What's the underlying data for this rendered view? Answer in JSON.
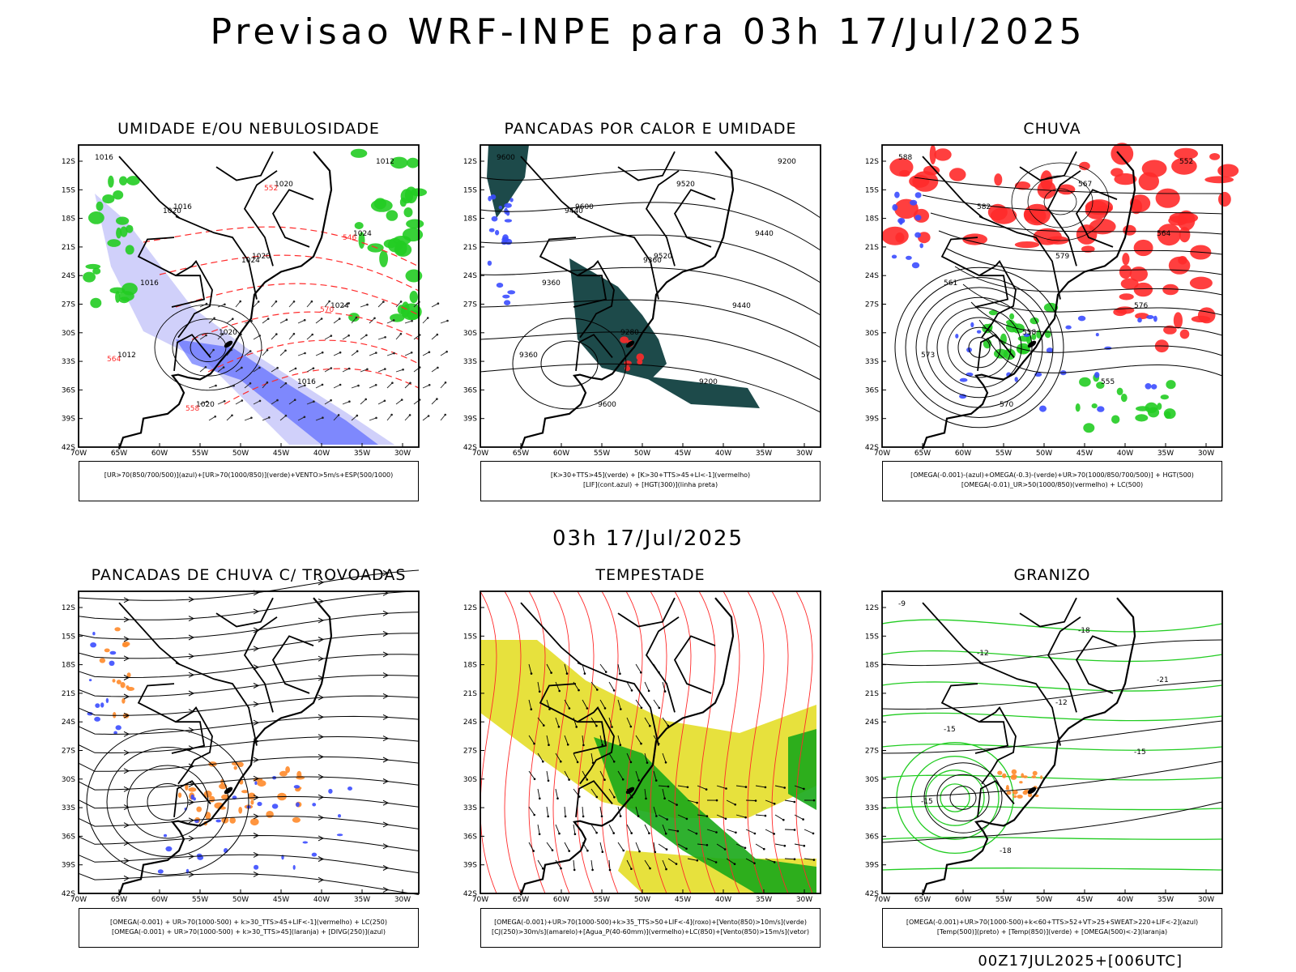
{
  "header": {
    "title": "Previsao WRF-INPE  para 03h 17/Jul/2025",
    "mid_title": "03h 17/Jul/2025",
    "footer": "00Z17JUL2025+[006UTC]"
  },
  "colors": {
    "frame": "#000000",
    "blue": "#3b4cff",
    "green": "#22cc22",
    "red": "#ff2a2a",
    "orange": "#ff8a2a",
    "yellow": "#e6df33",
    "dark_teal": "#1d4a4a",
    "lavender": "#a9a9f5"
  },
  "chart_data": [
    {
      "type": "map",
      "title": "UMIDADE E/OU NEBULOSIDADE",
      "legend": [
        "[UR>70(850/700/500)](azul)+[UR>70(1000/850)](verde)+VENTO>5m/s+ESP(500/1000)"
      ],
      "lon_ticks": [
        "70W",
        "65W",
        "60W",
        "55W",
        "50W",
        "45W",
        "40W",
        "35W",
        "30W"
      ],
      "lat_ticks": [
        "12S",
        "15S",
        "18S",
        "21S",
        "24S",
        "27S",
        "30S",
        "33S",
        "36S",
        "39S",
        "42S"
      ],
      "contour_labels": [
        "1016",
        "1016",
        "1020",
        "1024",
        "1012",
        "1020",
        "1020",
        "1024",
        "1016",
        "1020",
        "1016",
        "1012",
        "1020",
        "1024",
        "570",
        "564",
        "558",
        "552",
        "546"
      ]
    },
    {
      "type": "map",
      "title": "PANCADAS POR CALOR E UMIDADE",
      "legend": [
        "[K>30+TTS>45](verde) + [K>30+TTS>45+LI<-1](vermelho)",
        "[LIF](cont.azul) + [HGT(300)](linha preta)"
      ],
      "lon_ticks": [
        "70W",
        "65W",
        "60W",
        "55W",
        "50W",
        "45W",
        "40W",
        "35W",
        "30W"
      ],
      "lat_ticks": [
        "12S",
        "15S",
        "18S",
        "21S",
        "24S",
        "27S",
        "30S",
        "33S",
        "36S",
        "39S",
        "42S"
      ],
      "contour_labels": [
        "9600",
        "9600",
        "9520",
        "9440",
        "9360",
        "9600",
        "9520",
        "9440",
        "9360",
        "9280",
        "9200",
        "9200",
        "9440",
        "9360"
      ]
    },
    {
      "type": "map",
      "title": "CHUVA",
      "legend": [
        "[OMEGA(-0.001)-(azul)+OMEGA(-0.3)-(verde)+UR>70(1000/850/700/500)] + HGT(500)",
        "[OMEGA(-0.01)_UR>50(1000/850)(vermelho) + LC(500)"
      ],
      "lon_ticks": [
        "70W",
        "65W",
        "60W",
        "55W",
        "50W",
        "45W",
        "40W",
        "35W",
        "30W"
      ],
      "lat_ticks": [
        "12S",
        "15S",
        "18S",
        "21S",
        "24S",
        "27S",
        "30S",
        "33S",
        "36S",
        "39S",
        "42S"
      ],
      "contour_labels": [
        "588",
        "582",
        "579",
        "576",
        "573",
        "570",
        "567",
        "564",
        "561",
        "558",
        "555",
        "552"
      ]
    },
    {
      "type": "map",
      "title": "PANCADAS DE CHUVA C/ TROVOADAS",
      "legend": [
        "[OMEGA(-0.001) + UR>70(1000-500) + k>30_TTS>45+LIF<-1](vermelho) + LC(250)",
        "[OMEGA(-0.001) + UR>70(1000-500) + k>30_TTS>45](laranja) + [DIVG(250)](azul)"
      ],
      "lon_ticks": [
        "70W",
        "65W",
        "60W",
        "55W",
        "50W",
        "45W",
        "40W",
        "35W",
        "30W"
      ],
      "lat_ticks": [
        "12S",
        "15S",
        "18S",
        "21S",
        "24S",
        "27S",
        "30S",
        "33S",
        "36S",
        "39S",
        "42S"
      ],
      "contour_labels": []
    },
    {
      "type": "map",
      "title": "TEMPESTADE",
      "legend": [
        "[OMEGA(-0.001)+UR>70(1000-500)+k>35_TTS>50+LIF<-4](roxo)+[Vento(850)>10m/s](verde)",
        "[CJ(250)>30m/s](amarelo)+[Agua_P(40-60mm)](vermelho)+LC(850)+[Vento(850)>15m/s](vetor)"
      ],
      "lon_ticks": [
        "70W",
        "65W",
        "60W",
        "55W",
        "50W",
        "45W",
        "40W",
        "35W",
        "30W"
      ],
      "lat_ticks": [
        "12S",
        "15S",
        "18S",
        "21S",
        "24S",
        "27S",
        "30S",
        "33S",
        "36S",
        "39S",
        "42S"
      ],
      "contour_labels": []
    },
    {
      "type": "map",
      "title": "GRANIZO",
      "legend": [
        "[OMEGA(-0.001)+UR>70(1000-500)+k<60+TTS>52+VT>25+SWEAT>220+LIF<-2](azul)",
        "[Temp(500)](preto) + [Temp(850)](verde) + [OMEGA(500)<-2](laranja)"
      ],
      "lon_ticks": [
        "70W",
        "65W",
        "60W",
        "55W",
        "50W",
        "45W",
        "40W",
        "35W",
        "30W"
      ],
      "lat_ticks": [
        "12S",
        "15S",
        "18S",
        "21S",
        "24S",
        "27S",
        "30S",
        "33S",
        "36S",
        "39S",
        "42S"
      ],
      "contour_labels": [
        "-9",
        "-12",
        "-12",
        "-15",
        "-15",
        "-18",
        "-18",
        "-21",
        "-15"
      ]
    }
  ]
}
